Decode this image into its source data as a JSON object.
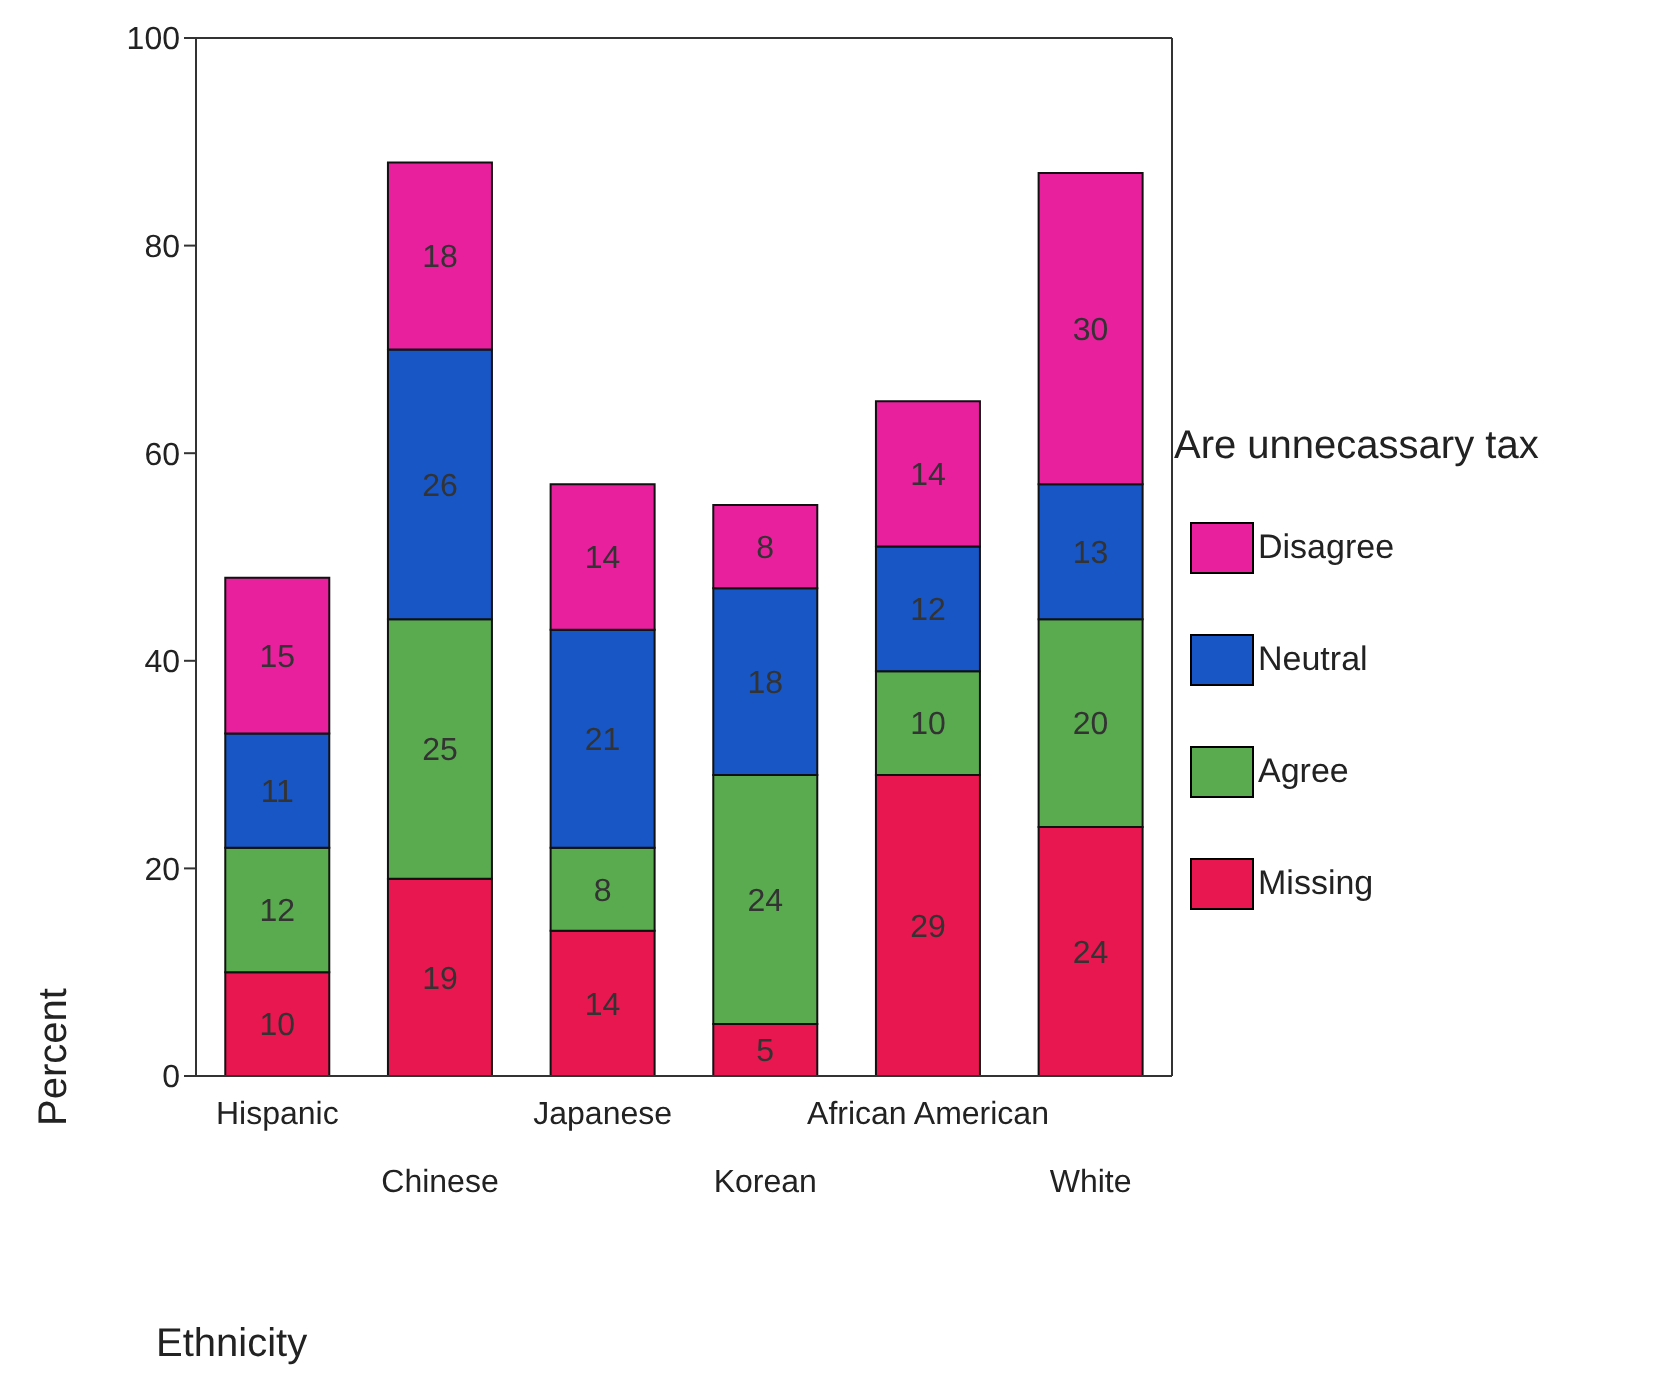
{
  "chart_data": {
    "type": "bar",
    "stacked": true,
    "xlabel": "Ethnicity",
    "ylabel": "Percent",
    "legend_title": "Are unnecassary tax",
    "categories": [
      "Hispanic",
      "Chinese",
      "Japanese",
      "Korean",
      "African American",
      "White"
    ],
    "series": [
      {
        "name": "Missing",
        "color": "#e8174f",
        "values": [
          10,
          19,
          14,
          5,
          29,
          24
        ]
      },
      {
        "name": "Agree",
        "color": "#5aab50",
        "values": [
          12,
          25,
          8,
          24,
          10,
          20
        ]
      },
      {
        "name": "Neutral",
        "color": "#1756c4",
        "values": [
          11,
          26,
          21,
          18,
          12,
          13
        ]
      },
      {
        "name": "Disagree",
        "color": "#e8209e",
        "values": [
          15,
          18,
          14,
          8,
          14,
          30
        ]
      }
    ],
    "ylim": [
      0,
      100
    ],
    "yticks": [
      0,
      20,
      40,
      60,
      80,
      100
    ],
    "data_labels": true,
    "legend": "right",
    "grid": false
  }
}
